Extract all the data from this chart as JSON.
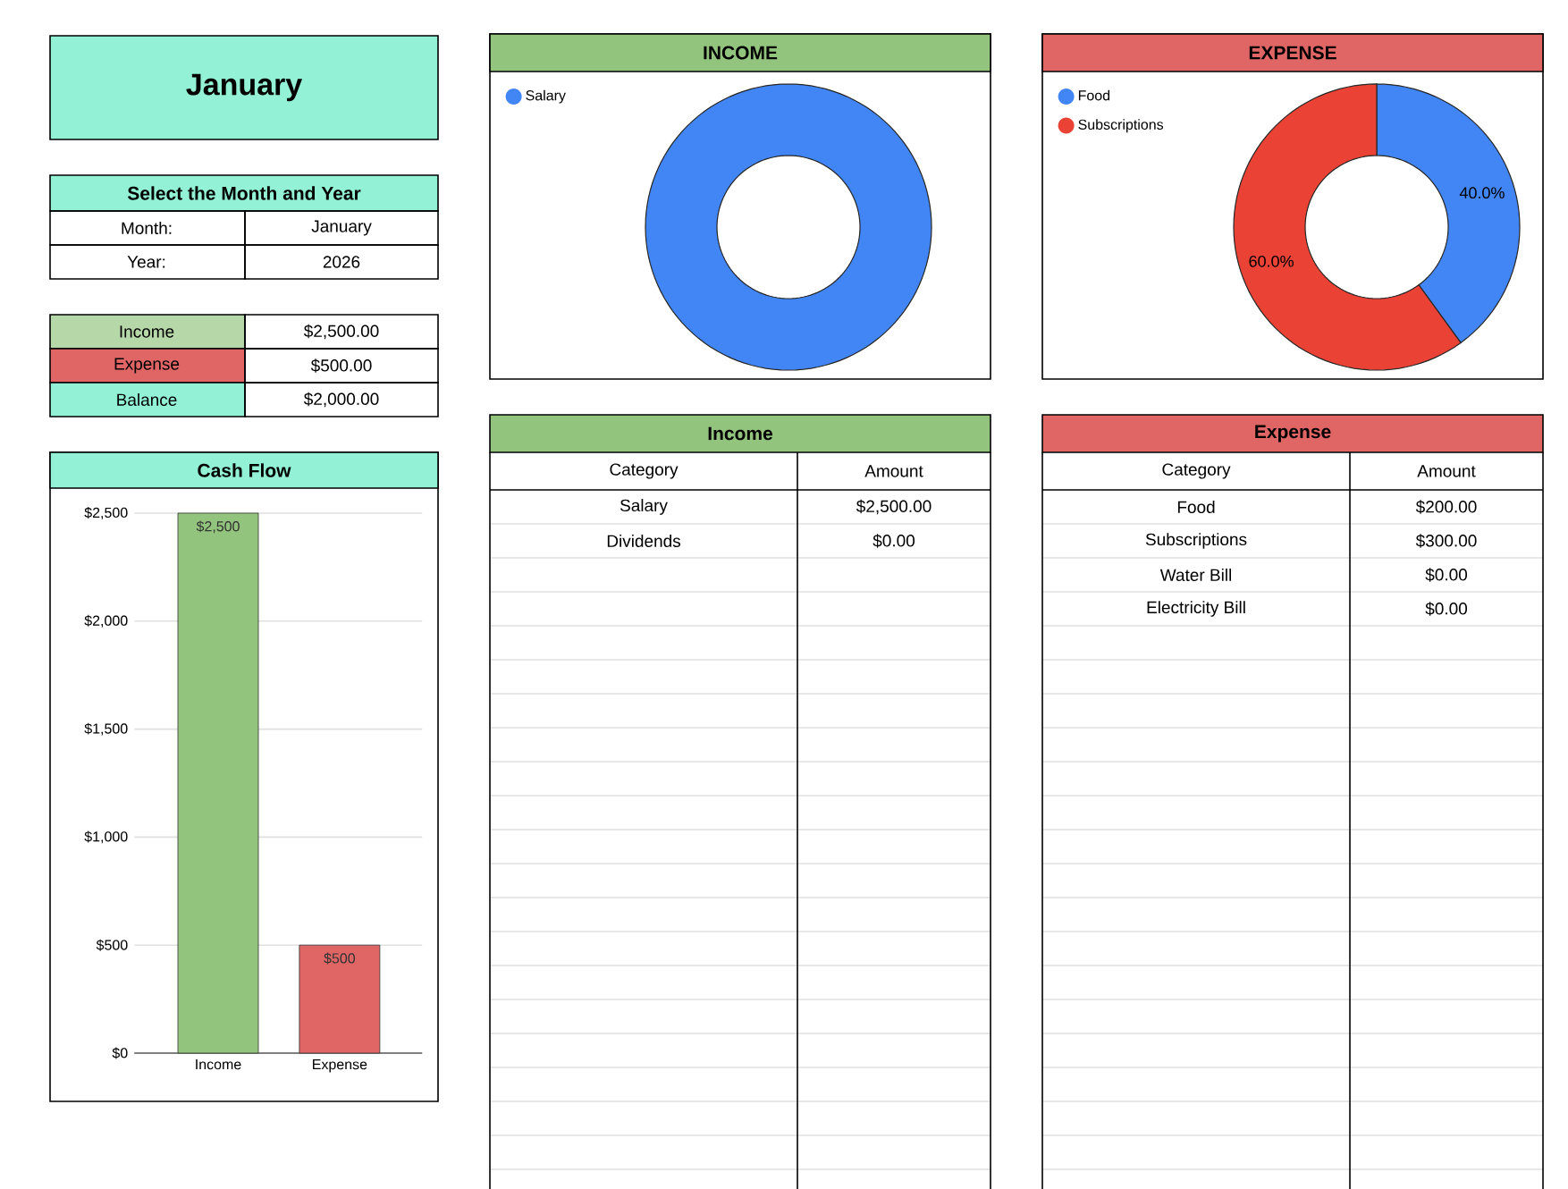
{
  "chart_data": [
    {
      "type": "other",
      "title": "January",
      "annotations": [
        "Select the Month and Year",
        "Month:",
        "January",
        "Year:",
        "2026",
        "Income",
        "$2,500.00",
        "Expense",
        "$500.00",
        "Balance",
        "$2,000.00"
      ]
    },
    {
      "type": "bar",
      "title": "Cash Flow",
      "categories": [
        "Income",
        "Expense"
      ],
      "values": [
        2500,
        500
      ],
      "colors": [
        "#93c47d",
        "#e06666"
      ],
      "ylim": [
        0,
        2500
      ],
      "yticks": [
        {
          "value": 0,
          "label": "$0"
        },
        {
          "value": 500,
          "label": "$500"
        },
        {
          "value": 1000,
          "label": "$1,000"
        },
        {
          "value": 1500,
          "label": "$1,500"
        },
        {
          "value": 2000,
          "label": "$2,000"
        },
        {
          "value": 2500,
          "label": "$2,500"
        }
      ],
      "grid": "y",
      "value_labels": [
        "$2,500",
        "$500"
      ]
    },
    {
      "type": "donut",
      "title": "INCOME",
      "categories": [
        "Salary"
      ],
      "values": [
        100
      ],
      "colors": [
        "#4285f4"
      ],
      "legend": "top left"
    },
    {
      "type": "donut",
      "title": "EXPENSE",
      "categories": [
        "Food",
        "Subscriptions"
      ],
      "values": [
        40,
        60
      ],
      "colors": [
        "#4285f4",
        "#ea4335"
      ],
      "legend": "top left",
      "value_labels": [
        "40.0%",
        "60.0%"
      ]
    },
    {
      "type": "other",
      "title": "Income",
      "annotations": [
        "Category",
        "Amount",
        "Salary",
        "$2,500.00",
        "Dividends",
        "$0.00"
      ]
    },
    {
      "type": "other",
      "title": "Expense",
      "annotations": [
        "Category",
        "Amount",
        "Food",
        "$200.00",
        "Subscriptions",
        "$300.00",
        "Water Bill",
        "$0.00",
        "Electricity Bill",
        "$0.00"
      ]
    }
  ]
}
